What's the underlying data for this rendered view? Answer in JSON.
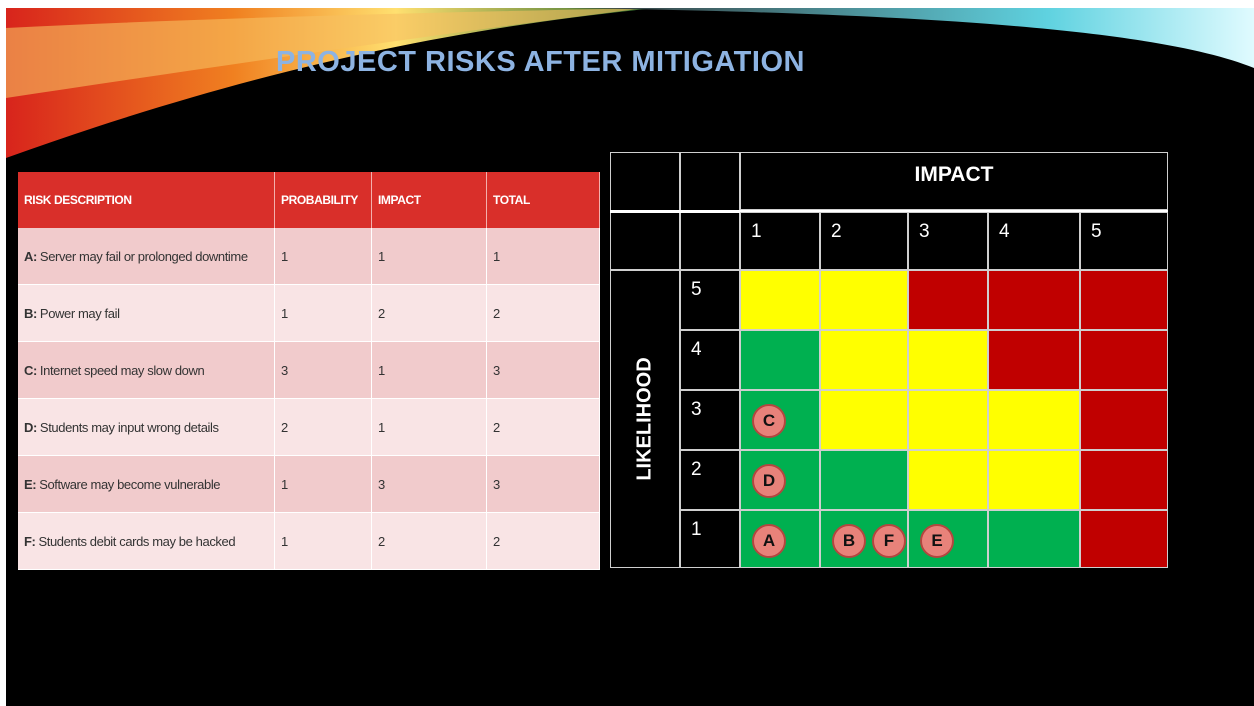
{
  "header": {
    "title": "PROJECT RISKS AFTER MITIGATION"
  },
  "table": {
    "columns": [
      "RISK DESCRIPTION",
      "PROBABILITY",
      "IMPACT",
      "TOTAL"
    ],
    "rows": [
      {
        "key": "A:",
        "letter": "A",
        "description": "Server may fail or prolonged downtime",
        "probability": 1,
        "impact": 1,
        "total": 1
      },
      {
        "key": "B:",
        "letter": "B",
        "description": "Power may fail",
        "probability": 1,
        "impact": 2,
        "total": 2
      },
      {
        "key": "C:",
        "letter": "C",
        "description": "Internet speed may slow down",
        "probability": 3,
        "impact": 1,
        "total": 3
      },
      {
        "key": "D:",
        "letter": "D",
        "description": "Students may input wrong details",
        "probability": 2,
        "impact": 1,
        "total": 2
      },
      {
        "key": "E:",
        "letter": "E",
        "description": "Software may become vulnerable",
        "probability": 1,
        "impact": 3,
        "total": 3
      },
      {
        "key": "F:",
        "letter": "F",
        "description": "Students debit cards may be hacked",
        "probability": 1,
        "impact": 2,
        "total": 2
      }
    ]
  },
  "matrix": {
    "impact_label": "IMPACT",
    "likelihood_label": "LIKELIHOOD",
    "impact_levels": [
      1,
      2,
      3,
      4,
      5
    ],
    "likelihood_levels": [
      5,
      4,
      3,
      2,
      1
    ],
    "cell_colors": [
      [
        "#ffff00",
        "#ffff00",
        "#c00000",
        "#c00000",
        "#c00000"
      ],
      [
        "#00b050",
        "#ffff00",
        "#ffff00",
        "#c00000",
        "#c00000"
      ],
      [
        "#00b050",
        "#ffff00",
        "#ffff00",
        "#ffff00",
        "#c00000"
      ],
      [
        "#00b050",
        "#00b050",
        "#ffff00",
        "#ffff00",
        "#c00000"
      ],
      [
        "#00b050",
        "#00b050",
        "#00b050",
        "#00b050",
        "#c00000"
      ]
    ]
  }
}
